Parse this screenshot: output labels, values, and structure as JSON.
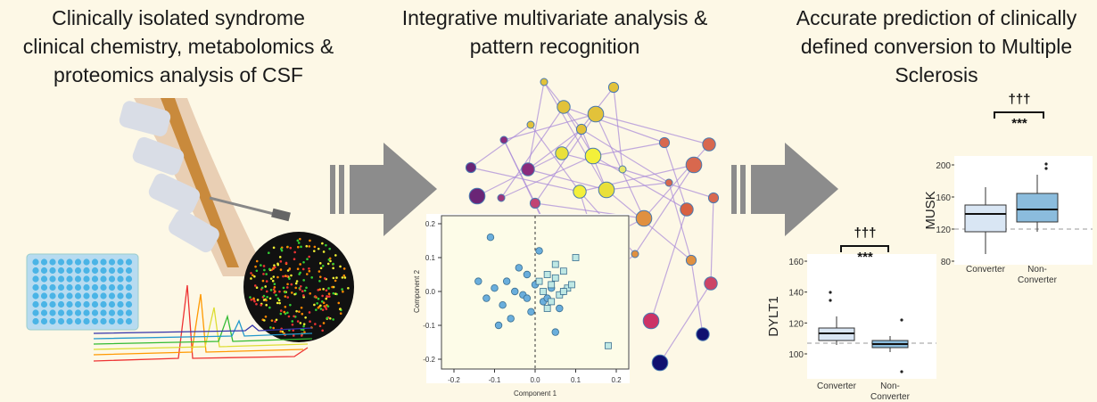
{
  "panels": [
    {
      "title": [
        "Clinically isolated syndrome",
        "clinical chemistry, metabolomics &",
        "proteomics analysis of CSF"
      ]
    },
    {
      "title": [
        "Integrative multivariate analysis &",
        "pattern recognition"
      ],
      "scatter": {
        "x_label": "Component 1",
        "y_label": "Component 2",
        "xticks": [
          -0.2,
          -0.1,
          {
            "value": 0,
            "label": "0.0"
          },
          0.1,
          0.2
        ],
        "yticks": [
          0.2,
          0.1,
          {
            "value": 0,
            "label": "0.0"
          },
          -0.1,
          -0.2
        ],
        "series": [
          {
            "marker": "circle",
            "color": "#6aaedc",
            "x": [
              -0.14,
              -0.1,
              -0.12,
              -0.08,
              -0.05,
              -0.07,
              -0.03,
              -0.02,
              0.0,
              0.02,
              0.04,
              -0.06,
              -0.09,
              -0.01,
              0.03,
              0.07,
              0.05,
              -0.04,
              -0.11,
              0.01,
              0.06,
              -0.02
            ],
            "y": [
              0.03,
              0.01,
              -0.02,
              -0.04,
              0.0,
              0.03,
              -0.01,
              0.05,
              0.02,
              -0.03,
              0.01,
              -0.08,
              -0.1,
              -0.06,
              -0.02,
              0.0,
              -0.12,
              0.07,
              0.16,
              0.12,
              -0.05,
              -0.02
            ]
          },
          {
            "marker": "square",
            "color": "#bfe8e4",
            "x": [
              0.03,
              0.05,
              0.07,
              0.04,
              0.02,
              0.06,
              0.08,
              0.09,
              0.01,
              0.04,
              0.05,
              0.03,
              0.18,
              0.1,
              0.07
            ],
            "y": [
              0.05,
              0.04,
              0.06,
              0.02,
              0.0,
              -0.01,
              0.01,
              0.02,
              0.03,
              -0.03,
              0.08,
              -0.05,
              -0.16,
              0.1,
              0.0
            ]
          }
        ]
      }
    },
    {
      "title": [
        "Accurate prediction of clinically",
        "defined conversion to Multiple",
        "Sclerosis"
      ],
      "boxplots": [
        {
          "y_label": "MUSK",
          "yticks": [
            80,
            120,
            160,
            200
          ],
          "categories": [
            [
              "Converter"
            ],
            [
              "Non-",
              "Converter"
            ]
          ],
          "significance": [
            "†††",
            "***"
          ]
        },
        {
          "y_label": "DYLT1",
          "yticks": [
            100,
            120,
            140,
            160
          ],
          "categories": [
            [
              "Converter"
            ],
            [
              "Non-",
              "Converter"
            ]
          ],
          "significance": [
            "†††",
            "***"
          ]
        }
      ]
    }
  ]
}
